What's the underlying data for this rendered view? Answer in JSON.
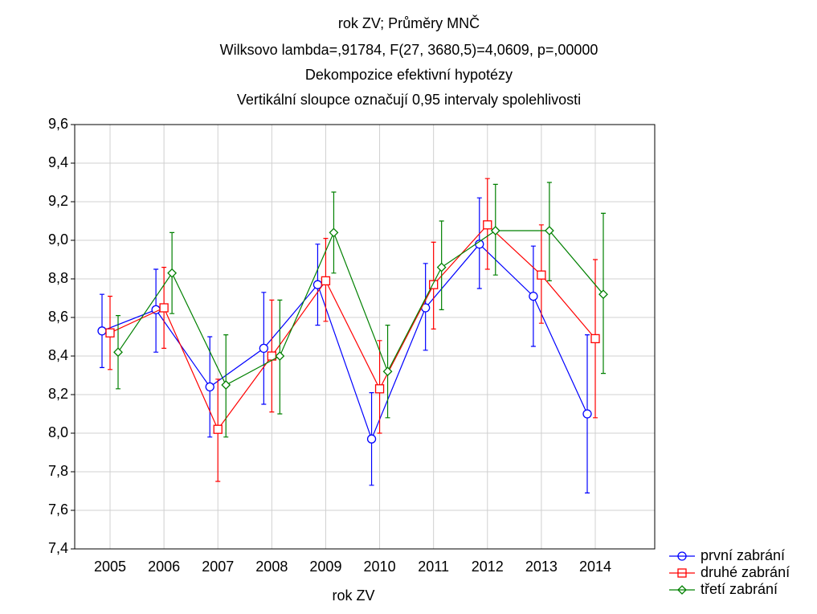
{
  "chart_data": {
    "type": "line",
    "title": "rok ZV; Průměry MNČ",
    "subtitles": [
      "Wilksovo lambda=,91784, F(27, 3680,5)=4,0609, p=,00000",
      "Dekompozice efektivní hypotézy",
      "Vertikální sloupce označují 0,95 intervaly spolehlivosti"
    ],
    "x_label": "rok ZV",
    "categories": [
      "2005",
      "2006",
      "2007",
      "2008",
      "2009",
      "2010",
      "2011",
      "2012",
      "2013",
      "2014"
    ],
    "ylim": [
      7.4,
      9.6
    ],
    "yticks": [
      {
        "value": 7.4,
        "label": "7,4"
      },
      {
        "value": 7.6,
        "label": "7,6"
      },
      {
        "value": 7.8,
        "label": "7,8"
      },
      {
        "value": 8.0,
        "label": "8,0"
      },
      {
        "value": 8.2,
        "label": "8,2"
      },
      {
        "value": 8.4,
        "label": "8,4"
      },
      {
        "value": 8.6,
        "label": "8,6"
      },
      {
        "value": 8.8,
        "label": "8,8"
      },
      {
        "value": 9.0,
        "label": "9,0"
      },
      {
        "value": 9.2,
        "label": "9,2"
      },
      {
        "value": 9.4,
        "label": "9,4"
      },
      {
        "value": 9.6,
        "label": "9,6"
      }
    ],
    "grid": true,
    "legend": "bottom-right",
    "series": [
      {
        "name": "první zabrání",
        "color": "#0000ff",
        "marker": "circle",
        "values": [
          8.53,
          8.64,
          8.24,
          8.44,
          8.77,
          7.97,
          8.65,
          8.98,
          8.71,
          8.1
        ],
        "lower": [
          8.34,
          8.42,
          7.98,
          8.15,
          8.56,
          7.73,
          8.43,
          8.75,
          8.45,
          7.69
        ],
        "upper": [
          8.72,
          8.85,
          8.5,
          8.73,
          8.98,
          8.21,
          8.88,
          9.22,
          8.97,
          8.51
        ]
      },
      {
        "name": "druhé zabrání",
        "color": "#ff0000",
        "marker": "square",
        "values": [
          8.52,
          8.65,
          8.02,
          8.4,
          8.79,
          8.23,
          8.77,
          9.08,
          8.82,
          8.49
        ],
        "lower": [
          8.33,
          8.44,
          7.75,
          8.11,
          8.58,
          8.0,
          8.54,
          8.85,
          8.57,
          8.08
        ],
        "upper": [
          8.71,
          8.86,
          8.28,
          8.69,
          9.01,
          8.48,
          8.99,
          9.32,
          9.08,
          8.9
        ]
      },
      {
        "name": "třetí zabrání",
        "color": "#008000",
        "marker": "diamond",
        "values": [
          8.42,
          8.83,
          8.25,
          8.4,
          9.04,
          8.32,
          8.86,
          9.05,
          9.05,
          8.72
        ],
        "lower": [
          8.23,
          8.62,
          7.98,
          8.1,
          8.83,
          8.08,
          8.64,
          8.82,
          8.79,
          8.31
        ],
        "upper": [
          8.61,
          9.04,
          8.51,
          8.69,
          9.25,
          8.56,
          9.1,
          9.29,
          9.3,
          9.14
        ]
      }
    ]
  }
}
